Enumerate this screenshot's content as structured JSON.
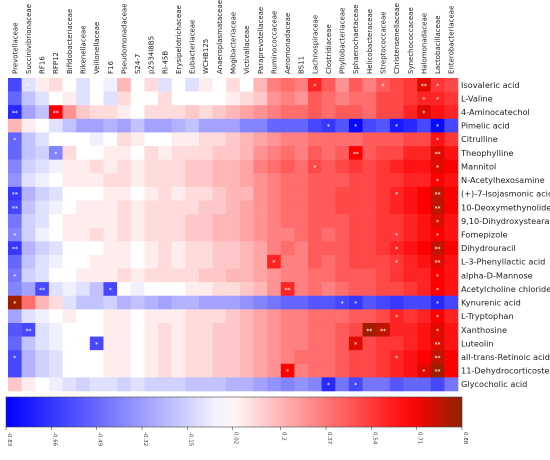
{
  "chart_data": {
    "type": "heatmap",
    "columns": [
      "Prevotellaceae",
      "Succinivibrionaceae",
      "RF16",
      "RFP12",
      "Bifidobacteriaceae",
      "Rikenellaceae",
      "Veillonellaceae",
      "F16",
      "Pseudomonadaceae",
      "S24-7",
      "p2534I8B5",
      "RI-45B",
      "Erysipelotrichaceae",
      "Eubacteriaceae",
      "WCHB125",
      "Anaeroplasmataceae",
      "Mogibacteriaceae",
      "Victivallaceae",
      "Paraprevotellaceae",
      "Ruminococcaceae",
      "Aeromonadaceae",
      "BS11",
      "Lachnospiraceae",
      "Clostridiaceae",
      "Phyllobacteriaceae",
      "Sphaerochaetaceae",
      "Helicobacteraceae",
      "Streptococcaceae",
      "Christensenellaceae",
      "Synechococcaceae",
      "Halomonadaceae",
      "Lactobacillaceae",
      "Enterobacteriaceae"
    ],
    "rows": [
      "Isovaleric acid",
      "L-Valine",
      "4-Aminocatechol",
      "Pimelic acid",
      "Citrulline",
      "Theophylline",
      "Mannitol",
      "N-Acetylhexosamine",
      "(+)-7-Isojasmonic acid",
      "10-Deoxymethynolide",
      "9,10-Dihydroxystearate",
      "Fomepizole",
      "Dihydrouracil",
      "L-3-Phenyllactic acid",
      "alpha-D-Mannose",
      "Acetylcholine chloride",
      "Kynurenic acid",
      "L-Tryptophan",
      "Xanthosine",
      "Luteolin",
      "all-trans-Retinoic acid",
      "11-Dehydrocorticosterone",
      "Glycocholic acid"
    ],
    "values": [
      [
        -0.6,
        -0.1,
        0.05,
        0.1,
        0.0,
        -0.1,
        0.0,
        -0.05,
        0.2,
        0.0,
        0.1,
        -0.1,
        0.0,
        -0.1,
        0.05,
        0.0,
        0.1,
        0.0,
        0.2,
        0.35,
        0.4,
        0.35,
        0.6,
        0.45,
        0.3,
        0.45,
        0.35,
        0.45,
        0.5,
        0.55,
        0.75,
        0.55,
        0.5
      ],
      [
        -0.5,
        -0.2,
        -0.1,
        0.0,
        0.05,
        -0.1,
        0.0,
        -0.1,
        0.1,
        0.0,
        0.0,
        0.1,
        0.0,
        0.0,
        0.0,
        0.0,
        0.05,
        0.1,
        0.15,
        0.3,
        0.35,
        0.3,
        0.45,
        0.4,
        0.35,
        0.4,
        0.4,
        0.5,
        0.5,
        0.55,
        0.6,
        0.6,
        0.55
      ],
      [
        -0.7,
        -0.3,
        -0.2,
        0.7,
        0.3,
        0.15,
        0.1,
        0.1,
        0.05,
        0.0,
        0.1,
        0.1,
        0.1,
        0.15,
        0.1,
        0.15,
        0.2,
        0.25,
        0.3,
        0.35,
        0.4,
        0.4,
        0.45,
        0.4,
        0.45,
        0.45,
        0.4,
        0.5,
        0.5,
        0.6,
        0.75,
        0.65,
        0.6
      ],
      [
        0.2,
        0.05,
        0.0,
        -0.1,
        -0.2,
        -0.3,
        -0.3,
        -0.25,
        -0.3,
        -0.2,
        -0.3,
        -0.3,
        -0.25,
        -0.2,
        -0.3,
        -0.3,
        -0.3,
        -0.4,
        -0.4,
        -0.5,
        -0.5,
        -0.5,
        -0.6,
        -0.65,
        -0.55,
        -0.8,
        -0.6,
        -0.55,
        -0.75,
        -0.7,
        -0.6,
        -0.8,
        -0.6
      ],
      [
        -0.5,
        -0.2,
        -0.1,
        0.0,
        0.0,
        0.0,
        -0.05,
        0.0,
        0.1,
        0.05,
        0.0,
        0.0,
        0.05,
        0.05,
        0.1,
        0.1,
        0.15,
        0.2,
        0.25,
        0.3,
        0.35,
        0.35,
        0.4,
        0.4,
        0.4,
        0.4,
        0.45,
        0.45,
        0.45,
        0.5,
        0.5,
        0.65,
        0.55
      ],
      [
        -0.5,
        -0.2,
        -0.15,
        -0.4,
        0.1,
        0.0,
        0.0,
        0.05,
        0.05,
        0.0,
        0.1,
        0.05,
        0.1,
        0.1,
        0.1,
        0.15,
        0.15,
        0.2,
        0.3,
        0.35,
        0.4,
        0.35,
        0.45,
        0.4,
        0.45,
        0.7,
        0.45,
        0.5,
        0.5,
        0.6,
        0.6,
        0.75,
        0.65
      ],
      [
        -0.4,
        -0.15,
        -0.1,
        -0.05,
        0.05,
        0.05,
        0.1,
        0.05,
        0.1,
        0.05,
        0.1,
        0.1,
        0.1,
        0.15,
        0.15,
        0.2,
        0.2,
        0.25,
        0.35,
        0.4,
        0.45,
        0.4,
        0.5,
        0.45,
        0.5,
        0.55,
        0.5,
        0.55,
        0.6,
        0.65,
        0.65,
        0.75,
        0.7
      ],
      [
        -0.35,
        -0.1,
        -0.05,
        0.0,
        0.05,
        0.05,
        0.05,
        0.1,
        0.1,
        0.05,
        0.1,
        0.1,
        0.1,
        0.15,
        0.15,
        0.2,
        0.2,
        0.25,
        0.3,
        0.35,
        0.4,
        0.4,
        0.45,
        0.45,
        0.45,
        0.5,
        0.5,
        0.55,
        0.55,
        0.6,
        0.6,
        0.7,
        0.65
      ],
      [
        -0.65,
        -0.25,
        -0.15,
        -0.1,
        0.0,
        0.0,
        0.0,
        0.05,
        0.05,
        0.0,
        0.05,
        0.1,
        0.05,
        0.1,
        0.1,
        0.15,
        0.2,
        0.2,
        0.3,
        0.35,
        0.4,
        0.4,
        0.45,
        0.45,
        0.5,
        0.5,
        0.5,
        0.55,
        0.6,
        0.65,
        0.7,
        0.8,
        0.7
      ],
      [
        -0.6,
        -0.2,
        -0.1,
        -0.05,
        0.0,
        0.05,
        0.05,
        0.05,
        0.1,
        0.05,
        0.1,
        0.1,
        0.1,
        0.1,
        0.15,
        0.15,
        0.2,
        0.25,
        0.3,
        0.35,
        0.4,
        0.4,
        0.45,
        0.45,
        0.5,
        0.5,
        0.5,
        0.55,
        0.6,
        0.65,
        0.7,
        0.8,
        0.7
      ],
      [
        -0.45,
        -0.15,
        -0.1,
        0.0,
        0.05,
        0.05,
        0.05,
        0.05,
        0.1,
        0.05,
        0.1,
        0.1,
        0.1,
        0.15,
        0.15,
        0.2,
        0.2,
        0.25,
        0.3,
        0.35,
        0.4,
        0.4,
        0.45,
        0.45,
        0.45,
        0.5,
        0.5,
        0.55,
        0.55,
        0.6,
        0.65,
        0.75,
        0.65
      ],
      [
        -0.4,
        -0.15,
        -0.05,
        0.0,
        0.05,
        0.05,
        0.1,
        0.05,
        0.1,
        0.05,
        0.1,
        0.1,
        0.1,
        0.15,
        0.15,
        0.2,
        0.2,
        0.25,
        0.3,
        0.35,
        0.35,
        0.4,
        0.45,
        0.4,
        0.45,
        0.5,
        0.5,
        0.55,
        0.55,
        0.6,
        0.65,
        0.7,
        0.65
      ],
      [
        -0.65,
        -0.25,
        -0.15,
        -0.1,
        0.0,
        0.0,
        0.0,
        0.05,
        0.05,
        0.0,
        0.05,
        0.1,
        0.05,
        0.1,
        0.1,
        0.15,
        0.15,
        0.2,
        0.25,
        0.35,
        0.4,
        0.35,
        0.45,
        0.45,
        0.45,
        0.5,
        0.5,
        0.55,
        0.6,
        0.65,
        0.7,
        0.8,
        0.7
      ],
      [
        -0.5,
        -0.2,
        -0.1,
        -0.05,
        0.0,
        0.0,
        0.05,
        0.05,
        0.05,
        0.0,
        0.05,
        0.1,
        0.05,
        0.1,
        0.1,
        0.15,
        0.15,
        0.2,
        0.25,
        0.6,
        0.35,
        0.35,
        0.45,
        0.4,
        0.45,
        0.5,
        0.5,
        0.5,
        0.55,
        0.6,
        0.65,
        0.75,
        0.65
      ],
      [
        -0.45,
        -0.15,
        -0.1,
        0.0,
        0.0,
        0.05,
        0.05,
        0.05,
        0.1,
        0.05,
        0.1,
        0.1,
        0.1,
        0.1,
        0.15,
        0.15,
        0.2,
        0.2,
        0.25,
        0.3,
        0.35,
        0.35,
        0.4,
        0.4,
        0.45,
        0.45,
        0.45,
        0.5,
        0.55,
        0.6,
        0.6,
        0.7,
        0.65
      ],
      [
        -0.4,
        -0.3,
        -0.6,
        -0.1,
        -0.05,
        -0.1,
        -0.2,
        -0.6,
        0.0,
        -0.05,
        0.0,
        0.0,
        0.0,
        0.05,
        0.05,
        0.1,
        0.1,
        0.15,
        0.2,
        0.3,
        0.6,
        0.35,
        0.4,
        0.35,
        0.4,
        0.45,
        0.45,
        0.5,
        0.5,
        0.55,
        0.6,
        0.7,
        0.65
      ],
      [
        0.85,
        0.4,
        0.2,
        0.1,
        -0.1,
        -0.2,
        -0.2,
        -0.15,
        -0.25,
        -0.2,
        -0.25,
        -0.3,
        -0.25,
        -0.25,
        -0.3,
        -0.3,
        -0.3,
        -0.35,
        -0.4,
        -0.45,
        -0.5,
        -0.5,
        -0.55,
        -0.55,
        -0.6,
        -0.65,
        -0.55,
        -0.6,
        -0.65,
        -0.6,
        -0.6,
        -0.7,
        -0.6
      ],
      [
        -0.3,
        -0.1,
        -0.05,
        0.0,
        0.05,
        0.0,
        0.0,
        0.05,
        0.05,
        0.0,
        0.05,
        0.05,
        0.05,
        0.1,
        0.1,
        0.1,
        0.15,
        0.2,
        0.25,
        0.3,
        0.35,
        0.35,
        0.4,
        0.4,
        0.4,
        0.45,
        0.45,
        0.5,
        0.6,
        0.55,
        0.6,
        0.7,
        0.6
      ],
      [
        -0.55,
        -0.6,
        -0.1,
        -0.05,
        0.0,
        0.0,
        0.0,
        0.05,
        0.05,
        0.0,
        0.05,
        0.1,
        0.05,
        0.1,
        0.1,
        0.15,
        0.15,
        0.2,
        0.25,
        0.3,
        0.35,
        0.35,
        0.4,
        0.4,
        0.45,
        0.5,
        0.85,
        0.8,
        0.6,
        0.6,
        0.65,
        0.75,
        0.65
      ],
      [
        -0.5,
        -0.2,
        -0.1,
        -0.05,
        0.0,
        0.0,
        -0.6,
        0.05,
        0.05,
        0.0,
        0.05,
        0.1,
        0.05,
        0.1,
        0.1,
        0.15,
        0.15,
        0.2,
        0.25,
        0.3,
        0.35,
        0.35,
        0.4,
        0.4,
        0.45,
        0.75,
        0.5,
        0.55,
        0.55,
        0.6,
        0.65,
        0.75,
        0.65
      ],
      [
        -0.6,
        -0.25,
        -0.15,
        -0.1,
        0.0,
        0.0,
        0.0,
        0.05,
        0.05,
        0.0,
        0.05,
        0.1,
        0.05,
        0.1,
        0.1,
        0.15,
        0.15,
        0.2,
        0.25,
        0.3,
        0.35,
        0.4,
        0.4,
        0.4,
        0.45,
        0.5,
        0.5,
        0.55,
        0.6,
        0.65,
        0.7,
        0.8,
        0.7
      ],
      [
        -0.6,
        -0.25,
        -0.15,
        -0.1,
        0.0,
        0.0,
        0.0,
        0.05,
        0.05,
        0.0,
        0.05,
        0.1,
        0.05,
        0.1,
        0.1,
        0.15,
        0.15,
        0.2,
        0.25,
        0.3,
        0.7,
        0.35,
        0.4,
        0.4,
        0.45,
        0.5,
        0.5,
        0.55,
        0.6,
        0.65,
        0.75,
        0.85,
        0.7
      ],
      [
        0.15,
        0.05,
        0.0,
        -0.05,
        -0.1,
        -0.15,
        -0.1,
        -0.1,
        -0.15,
        -0.1,
        -0.15,
        -0.15,
        -0.15,
        -0.2,
        -0.2,
        -0.2,
        -0.25,
        -0.25,
        -0.3,
        -0.35,
        -0.4,
        -0.35,
        -0.4,
        -0.7,
        -0.45,
        -0.6,
        -0.45,
        -0.45,
        -0.55,
        -0.5,
        -0.5,
        -0.6,
        -0.45
      ]
    ],
    "significance": [
      {
        "row": 0,
        "col": 1,
        "mark": "*"
      },
      {
        "row": 0,
        "col": 22,
        "mark": "*"
      },
      {
        "row": 0,
        "col": 27,
        "mark": "*"
      },
      {
        "row": 0,
        "col": 30,
        "mark": "**"
      },
      {
        "row": 0,
        "col": 31,
        "mark": "*"
      },
      {
        "row": 1,
        "col": 30,
        "mark": "*"
      },
      {
        "row": 1,
        "col": 31,
        "mark": "*"
      },
      {
        "row": 2,
        "col": 0,
        "mark": "**"
      },
      {
        "row": 2,
        "col": 3,
        "mark": "**"
      },
      {
        "row": 2,
        "col": 30,
        "mark": "*"
      },
      {
        "row": 3,
        "col": 23,
        "mark": "*"
      },
      {
        "row": 3,
        "col": 25,
        "mark": "*"
      },
      {
        "row": 3,
        "col": 28,
        "mark": "*"
      },
      {
        "row": 3,
        "col": 31,
        "mark": "*"
      },
      {
        "row": 4,
        "col": 0,
        "mark": "*"
      },
      {
        "row": 4,
        "col": 31,
        "mark": "*"
      },
      {
        "row": 5,
        "col": 3,
        "mark": "*"
      },
      {
        "row": 5,
        "col": 25,
        "mark": "**"
      },
      {
        "row": 5,
        "col": 31,
        "mark": "**"
      },
      {
        "row": 6,
        "col": 22,
        "mark": "*"
      },
      {
        "row": 6,
        "col": 31,
        "mark": "*"
      },
      {
        "row": 7,
        "col": 31,
        "mark": "*"
      },
      {
        "row": 8,
        "col": 0,
        "mark": "**"
      },
      {
        "row": 8,
        "col": 28,
        "mark": "*"
      },
      {
        "row": 8,
        "col": 31,
        "mark": "**"
      },
      {
        "row": 9,
        "col": 0,
        "mark": "**"
      },
      {
        "row": 9,
        "col": 31,
        "mark": "**"
      },
      {
        "row": 10,
        "col": 31,
        "mark": "*"
      },
      {
        "row": 11,
        "col": 0,
        "mark": "*"
      },
      {
        "row": 11,
        "col": 28,
        "mark": "*"
      },
      {
        "row": 11,
        "col": 31,
        "mark": "*"
      },
      {
        "row": 12,
        "col": 0,
        "mark": "**"
      },
      {
        "row": 12,
        "col": 28,
        "mark": "*"
      },
      {
        "row": 12,
        "col": 31,
        "mark": "**"
      },
      {
        "row": 13,
        "col": 19,
        "mark": "*"
      },
      {
        "row": 13,
        "col": 28,
        "mark": "*"
      },
      {
        "row": 13,
        "col": 31,
        "mark": "**"
      },
      {
        "row": 14,
        "col": 0,
        "mark": "*"
      },
      {
        "row": 14,
        "col": 31,
        "mark": "*"
      },
      {
        "row": 15,
        "col": 2,
        "mark": "**"
      },
      {
        "row": 15,
        "col": 7,
        "mark": "*"
      },
      {
        "row": 15,
        "col": 20,
        "mark": "**"
      },
      {
        "row": 15,
        "col": 31,
        "mark": "*"
      },
      {
        "row": 16,
        "col": 0,
        "mark": "*"
      },
      {
        "row": 16,
        "col": 24,
        "mark": "*"
      },
      {
        "row": 16,
        "col": 25,
        "mark": "*"
      },
      {
        "row": 16,
        "col": 31,
        "mark": "*"
      },
      {
        "row": 17,
        "col": 28,
        "mark": "*"
      },
      {
        "row": 17,
        "col": 31,
        "mark": "*"
      },
      {
        "row": 18,
        "col": 1,
        "mark": "**"
      },
      {
        "row": 18,
        "col": 26,
        "mark": "**"
      },
      {
        "row": 18,
        "col": 27,
        "mark": "**"
      },
      {
        "row": 18,
        "col": 31,
        "mark": "*"
      },
      {
        "row": 19,
        "col": 6,
        "mark": "*"
      },
      {
        "row": 19,
        "col": 25,
        "mark": "*"
      },
      {
        "row": 19,
        "col": 31,
        "mark": "**"
      },
      {
        "row": 20,
        "col": 0,
        "mark": "*"
      },
      {
        "row": 20,
        "col": 28,
        "mark": "*"
      },
      {
        "row": 20,
        "col": 31,
        "mark": "**"
      },
      {
        "row": 21,
        "col": 20,
        "mark": "*"
      },
      {
        "row": 21,
        "col": 30,
        "mark": "*"
      },
      {
        "row": 21,
        "col": 31,
        "mark": "**"
      },
      {
        "row": 22,
        "col": 23,
        "mark": "*"
      },
      {
        "row": 22,
        "col": 25,
        "mark": "*"
      }
    ],
    "colorbar": {
      "ticks": [
        "-0.83",
        "-0.66",
        "-0.49",
        "-0.32",
        "-0.15",
        "0.02",
        "0.2",
        "0.37",
        "0.54",
        "0.71",
        "0.88"
      ],
      "vmin": -0.83,
      "vmax": 0.88
    },
    "colors": {
      "negative": "#0000ff",
      "neutral": "#ffffff",
      "positive": "#ff0000",
      "max": "#8b2500"
    },
    "title": "",
    "xlabel": "",
    "ylabel": ""
  }
}
